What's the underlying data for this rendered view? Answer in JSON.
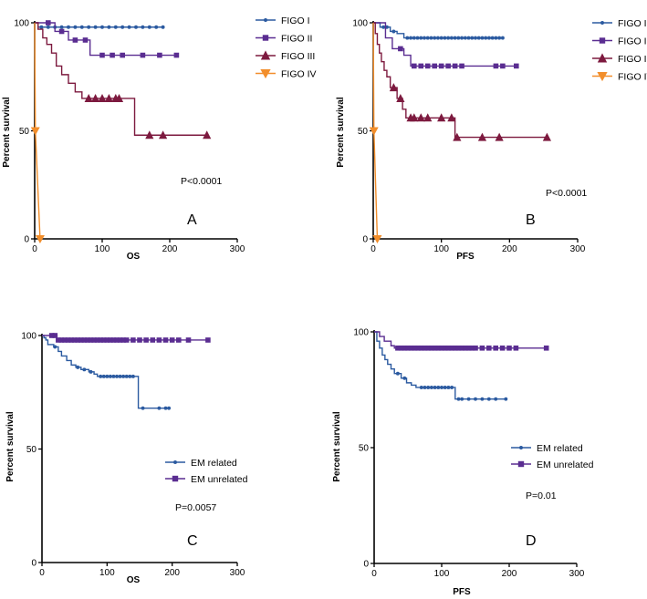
{
  "chart_data": [
    {
      "type": "line",
      "subtype": "kaplan-meier",
      "panel_label": "A",
      "xlabel": "OS",
      "ylabel": "Percent survival",
      "xlim": [
        0,
        300
      ],
      "ylim": [
        0,
        100
      ],
      "xticks": [
        "0",
        "100",
        "200",
        "300"
      ],
      "yticks": [
        "0",
        "50",
        "100"
      ],
      "annotation": "P<0.0001",
      "series": [
        {
          "name": "FIGO I",
          "color": "#2b5aa0",
          "marker": "circle",
          "steps": [
            [
              0,
              100
            ],
            [
              5,
              98
            ],
            [
              190,
              98
            ]
          ],
          "censored": [
            10,
            20,
            30,
            40,
            50,
            60,
            70,
            80,
            90,
            100,
            110,
            120,
            130,
            140,
            150,
            160,
            170,
            180,
            190
          ]
        },
        {
          "name": "FIGO II",
          "color": "#5a2d91",
          "marker": "square",
          "steps": [
            [
              0,
              100
            ],
            [
              30,
              96
            ],
            [
              50,
              92
            ],
            [
              82,
              85
            ],
            [
              210,
              85
            ]
          ],
          "censored": [
            20,
            40,
            60,
            75,
            100,
            115,
            130,
            160,
            185,
            210
          ]
        },
        {
          "name": "FIGO III",
          "color": "#7d1a3f",
          "marker": "triangle",
          "steps": [
            [
              0,
              100
            ],
            [
              5,
              97
            ],
            [
              12,
              93
            ],
            [
              18,
              90
            ],
            [
              25,
              86
            ],
            [
              32,
              80
            ],
            [
              40,
              76
            ],
            [
              50,
              72
            ],
            [
              60,
              68
            ],
            [
              70,
              65
            ],
            [
              130,
              65
            ],
            [
              148,
              48
            ],
            [
              255,
              48
            ]
          ],
          "censored": [
            80,
            90,
            100,
            110,
            120,
            125,
            170,
            190,
            255
          ]
        },
        {
          "name": "FIGO IV",
          "color": "#f28e2b",
          "marker": "triangle-down",
          "steps": [
            [
              0,
              100
            ],
            [
              1,
              50
            ],
            [
              8,
              0
            ]
          ],
          "censored": [
            1,
            8
          ]
        }
      ]
    },
    {
      "type": "line",
      "subtype": "kaplan-meier",
      "panel_label": "B",
      "xlabel": "PFS",
      "ylabel": "Percent survival",
      "xlim": [
        0,
        300
      ],
      "ylim": [
        0,
        100
      ],
      "xticks": [
        "0",
        "100",
        "200",
        "300"
      ],
      "yticks": [
        "0",
        "50",
        "100"
      ],
      "annotation": "P<0.0001",
      "series": [
        {
          "name": "FIGO I",
          "color": "#2b5aa0",
          "marker": "circle",
          "steps": [
            [
              0,
              100
            ],
            [
              10,
              98
            ],
            [
              25,
              96
            ],
            [
              35,
              95
            ],
            [
              45,
              93
            ],
            [
              190,
              93
            ]
          ],
          "censored": [
            15,
            20,
            30,
            50,
            55,
            60,
            65,
            70,
            75,
            80,
            85,
            90,
            95,
            100,
            105,
            110,
            115,
            120,
            125,
            130,
            135,
            140,
            145,
            150,
            155,
            160,
            165,
            170,
            175,
            180,
            185,
            190
          ]
        },
        {
          "name": "FIGO II",
          "color": "#5a2d91",
          "marker": "square",
          "steps": [
            [
              0,
              100
            ],
            [
              18,
              93
            ],
            [
              28,
              88
            ],
            [
              45,
              85
            ],
            [
              55,
              80
            ],
            [
              210,
              80
            ]
          ],
          "censored": [
            40,
            60,
            70,
            80,
            90,
            100,
            110,
            120,
            130,
            180,
            190,
            210
          ]
        },
        {
          "name": "FIGO III",
          "color": "#7d1a3f",
          "marker": "triangle",
          "steps": [
            [
              0,
              100
            ],
            [
              3,
              95
            ],
            [
              6,
              90
            ],
            [
              9,
              86
            ],
            [
              12,
              82
            ],
            [
              16,
              78
            ],
            [
              20,
              75
            ],
            [
              25,
              70
            ],
            [
              35,
              65
            ],
            [
              43,
              60
            ],
            [
              48,
              56
            ],
            [
              118,
              56
            ],
            [
              120,
              47
            ],
            [
              255,
              47
            ]
          ],
          "censored": [
            30,
            40,
            55,
            60,
            70,
            80,
            100,
            115,
            123,
            160,
            185,
            255
          ]
        },
        {
          "name": "FIGO IV",
          "color": "#f28e2b",
          "marker": "triangle-down",
          "steps": [
            [
              0,
              100
            ],
            [
              1,
              50
            ],
            [
              6,
              0
            ]
          ],
          "censored": [
            1,
            6
          ]
        }
      ]
    },
    {
      "type": "line",
      "subtype": "kaplan-meier",
      "panel_label": "C",
      "xlabel": "OS",
      "ylabel": "Percent survival",
      "xlim": [
        0,
        300
      ],
      "ylim": [
        0,
        100
      ],
      "xticks": [
        "0",
        "100",
        "200",
        "300"
      ],
      "yticks": [
        "0",
        "50",
        "100"
      ],
      "annotation": "P=0.0057",
      "series": [
        {
          "name": "EM related",
          "color": "#2b5aa0",
          "marker": "circle",
          "steps": [
            [
              0,
              100
            ],
            [
              3,
              99
            ],
            [
              6,
              98
            ],
            [
              9,
              96
            ],
            [
              18,
              95
            ],
            [
              25,
              93
            ],
            [
              30,
              91
            ],
            [
              38,
              89
            ],
            [
              45,
              87
            ],
            [
              52,
              86
            ],
            [
              60,
              85
            ],
            [
              72,
              84
            ],
            [
              80,
              83
            ],
            [
              85,
              82
            ],
            [
              145,
              82
            ],
            [
              148,
              68
            ],
            [
              195,
              68
            ]
          ],
          "censored": [
            20,
            55,
            65,
            75,
            90,
            95,
            100,
            105,
            110,
            115,
            120,
            125,
            130,
            135,
            140,
            155,
            180,
            190,
            195
          ]
        },
        {
          "name": "EM unrelated",
          "color": "#5a2d91",
          "marker": "square",
          "steps": [
            [
              0,
              100
            ],
            [
              10,
              100
            ],
            [
              23,
              98
            ],
            [
              255,
              98
            ]
          ],
          "censored": [
            15,
            20,
            25,
            30,
            35,
            40,
            45,
            50,
            55,
            60,
            65,
            70,
            75,
            80,
            85,
            90,
            95,
            100,
            105,
            110,
            115,
            120,
            125,
            130,
            140,
            150,
            160,
            170,
            180,
            190,
            200,
            210,
            225,
            255
          ]
        }
      ]
    },
    {
      "type": "line",
      "subtype": "kaplan-meier",
      "panel_label": "D",
      "xlabel": "PFS",
      "ylabel": "Percent survival",
      "xlim": [
        0,
        300
      ],
      "ylim": [
        0,
        100
      ],
      "xticks": [
        "0",
        "100",
        "200",
        "300"
      ],
      "yticks": [
        "0",
        "50",
        "100"
      ],
      "annotation": "P=0.01",
      "series": [
        {
          "name": "EM related",
          "color": "#2b5aa0",
          "marker": "circle",
          "steps": [
            [
              0,
              100
            ],
            [
              4,
              96
            ],
            [
              8,
              93
            ],
            [
              12,
              90
            ],
            [
              16,
              88
            ],
            [
              20,
              86
            ],
            [
              25,
              84
            ],
            [
              30,
              82
            ],
            [
              40,
              80
            ],
            [
              48,
              78
            ],
            [
              55,
              77
            ],
            [
              62,
              76
            ],
            [
              118,
              76
            ],
            [
              120,
              71
            ],
            [
              195,
              71
            ]
          ],
          "censored": [
            35,
            45,
            70,
            75,
            80,
            85,
            90,
            95,
            100,
            105,
            110,
            115,
            125,
            130,
            140,
            150,
            160,
            170,
            180,
            195
          ]
        },
        {
          "name": "EM unrelated",
          "color": "#5a2d91",
          "marker": "square",
          "steps": [
            [
              0,
              100
            ],
            [
              8,
              98
            ],
            [
              15,
              96
            ],
            [
              25,
              94
            ],
            [
              30,
              93
            ],
            [
              255,
              93
            ]
          ],
          "censored": [
            35,
            40,
            45,
            50,
            55,
            60,
            65,
            70,
            75,
            80,
            85,
            90,
            95,
            100,
            105,
            110,
            115,
            120,
            125,
            130,
            135,
            140,
            145,
            150,
            160,
            170,
            180,
            190,
            200,
            210,
            255
          ]
        }
      ]
    }
  ]
}
